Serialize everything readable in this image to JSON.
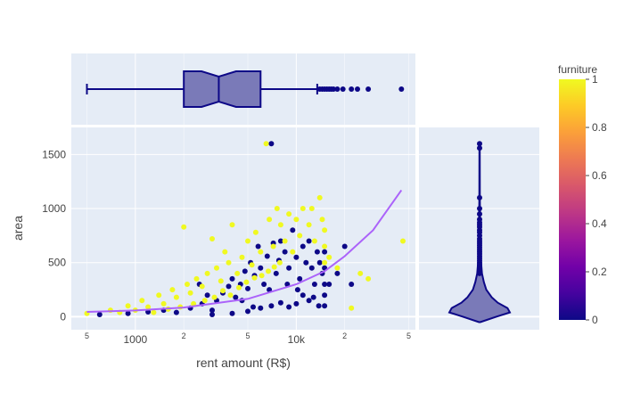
{
  "chart_data": {
    "type": "scatter",
    "xlabel": "rent amount (R$)",
    "ylabel": "area",
    "x_scale": "log",
    "xlim": [
      400,
      55000
    ],
    "ylim": [
      -120,
      1750
    ],
    "x_major_ticks": [
      {
        "value": 1000,
        "label": "1000"
      },
      {
        "value": 10000,
        "label": "10k"
      }
    ],
    "x_minor_ticks": [
      {
        "value": 500,
        "label": "5"
      },
      {
        "value": 2000,
        "label": "2"
      },
      {
        "value": 5000,
        "label": "5"
      },
      {
        "value": 20000,
        "label": "2"
      },
      {
        "value": 50000,
        "label": "5"
      }
    ],
    "y_ticks": [
      0,
      500,
      1000,
      1500
    ],
    "grid": true,
    "colorbar": {
      "title": "furniture",
      "range": [
        0,
        1
      ],
      "ticks": [
        0,
        0.2,
        0.4,
        0.6,
        0.8,
        1
      ],
      "tick_labels": [
        "0",
        "0.2",
        "0.4",
        "0.6",
        "0.8",
        "1"
      ],
      "colors": [
        "#0d0887",
        "#46039f",
        "#7201a8",
        "#9c179e",
        "#bd3786",
        "#d8576b",
        "#ed7953",
        "#fb9f3a",
        "#fdca26",
        "#f0f921"
      ]
    },
    "series": [
      {
        "color_value": 0,
        "color": "#0d0887",
        "points": [
          [
            600,
            20
          ],
          [
            900,
            30
          ],
          [
            1200,
            45
          ],
          [
            1500,
            60
          ],
          [
            1800,
            40
          ],
          [
            2200,
            80
          ],
          [
            2600,
            120
          ],
          [
            3000,
            60
          ],
          [
            3200,
            150
          ],
          [
            3500,
            220
          ],
          [
            3800,
            280
          ],
          [
            4000,
            350
          ],
          [
            4200,
            180
          ],
          [
            4500,
            300
          ],
          [
            4800,
            420
          ],
          [
            5000,
            260
          ],
          [
            5200,
            500
          ],
          [
            5500,
            380
          ],
          [
            5800,
            650
          ],
          [
            6000,
            450
          ],
          [
            6300,
            300
          ],
          [
            6600,
            560
          ],
          [
            7000,
            1600
          ],
          [
            7200,
            680
          ],
          [
            7500,
            400
          ],
          [
            7800,
            520
          ],
          [
            8000,
            700
          ],
          [
            8500,
            600
          ],
          [
            9000,
            450
          ],
          [
            9500,
            800
          ],
          [
            10000,
            550
          ],
          [
            10500,
            350
          ],
          [
            11000,
            650
          ],
          [
            11500,
            500
          ],
          [
            12000,
            700
          ],
          [
            12500,
            450
          ],
          [
            13000,
            300
          ],
          [
            13500,
            600
          ],
          [
            14000,
            500
          ],
          [
            14500,
            400
          ],
          [
            15000,
            600
          ],
          [
            15000,
            450
          ],
          [
            15000,
            300
          ],
          [
            15000,
            200
          ],
          [
            15000,
            100
          ],
          [
            16000,
            300
          ],
          [
            18000,
            400
          ],
          [
            20000,
            650
          ],
          [
            22000,
            300
          ],
          [
            3000,
            20
          ],
          [
            4000,
            30
          ],
          [
            5000,
            50
          ],
          [
            6000,
            80
          ],
          [
            7000,
            100
          ],
          [
            8000,
            130
          ],
          [
            9000,
            90
          ],
          [
            10000,
            120
          ],
          [
            11000,
            200
          ],
          [
            12000,
            150
          ],
          [
            2500,
            300
          ],
          [
            2800,
            200
          ],
          [
            4600,
            150
          ],
          [
            5400,
            90
          ],
          [
            6800,
            250
          ],
          [
            8800,
            300
          ],
          [
            10200,
            250
          ],
          [
            12800,
            180
          ],
          [
            13800,
            100
          ]
        ]
      },
      {
        "color_value": 1,
        "color": "#f0f921",
        "points": [
          [
            500,
            30
          ],
          [
            700,
            60
          ],
          [
            800,
            40
          ],
          [
            900,
            100
          ],
          [
            1000,
            60
          ],
          [
            1100,
            150
          ],
          [
            1200,
            90
          ],
          [
            1400,
            200
          ],
          [
            1500,
            120
          ],
          [
            1700,
            250
          ],
          [
            1800,
            180
          ],
          [
            2000,
            830
          ],
          [
            2100,
            300
          ],
          [
            2200,
            220
          ],
          [
            2400,
            350
          ],
          [
            2600,
            280
          ],
          [
            2800,
            400
          ],
          [
            3000,
            720
          ],
          [
            3200,
            450
          ],
          [
            3400,
            330
          ],
          [
            3600,
            600
          ],
          [
            3800,
            500
          ],
          [
            4000,
            850
          ],
          [
            4300,
            400
          ],
          [
            4600,
            550
          ],
          [
            5000,
            700
          ],
          [
            5300,
            480
          ],
          [
            5600,
            780
          ],
          [
            6000,
            600
          ],
          [
            6500,
            1600
          ],
          [
            6800,
            900
          ],
          [
            7200,
            650
          ],
          [
            7600,
            1000
          ],
          [
            8000,
            850
          ],
          [
            8500,
            700
          ],
          [
            9000,
            950
          ],
          [
            9500,
            600
          ],
          [
            10000,
            900
          ],
          [
            10500,
            750
          ],
          [
            11000,
            1000
          ],
          [
            12000,
            850
          ],
          [
            12500,
            1000
          ],
          [
            13000,
            700
          ],
          [
            14000,
            1100
          ],
          [
            14500,
            900
          ],
          [
            15000,
            800
          ],
          [
            15000,
            650
          ],
          [
            15000,
            500
          ],
          [
            16000,
            550
          ],
          [
            18000,
            450
          ],
          [
            22000,
            80
          ],
          [
            25000,
            400
          ],
          [
            28000,
            350
          ],
          [
            46000,
            700
          ],
          [
            1300,
            40
          ],
          [
            1600,
            70
          ],
          [
            1900,
            90
          ],
          [
            2300,
            120
          ],
          [
            2700,
            150
          ],
          [
            3100,
            180
          ],
          [
            3500,
            240
          ],
          [
            3900,
            200
          ],
          [
            4400,
            270
          ],
          [
            4900,
            320
          ],
          [
            5500,
            360
          ],
          [
            6100,
            380
          ],
          [
            6700,
            420
          ],
          [
            7300,
            460
          ],
          [
            7900,
            500
          ]
        ]
      }
    ],
    "trendline": {
      "color": "#ab63fa",
      "points": [
        [
          500,
          45
        ],
        [
          1000,
          58
        ],
        [
          2000,
          85
        ],
        [
          5000,
          165
        ],
        [
          10000,
          300
        ],
        [
          15000,
          420
        ],
        [
          20000,
          560
        ],
        [
          30000,
          800
        ],
        [
          45000,
          1170
        ]
      ]
    },
    "marginal_x": {
      "type": "box",
      "notched": true,
      "color": "#0d0887",
      "fill": "#7a7ab8",
      "min": 500,
      "q1": 2000,
      "median": 3300,
      "q3": 6000,
      "max": 13500,
      "outliers": [
        14000,
        14500,
        15000,
        15500,
        16000,
        16500,
        17000,
        18000,
        19500,
        22000,
        24000,
        28000,
        45000
      ]
    },
    "marginal_y": {
      "type": "violin",
      "color": "#0d0887",
      "fill": "#7a7ab8",
      "profile": [
        [
          -50,
          0.02
        ],
        [
          0,
          0.55
        ],
        [
          40,
          1.0
        ],
        [
          80,
          0.92
        ],
        [
          130,
          0.6
        ],
        [
          180,
          0.4
        ],
        [
          250,
          0.22
        ],
        [
          320,
          0.14
        ],
        [
          400,
          0.08
        ],
        [
          500,
          0.05
        ],
        [
          600,
          0.03
        ],
        [
          800,
          0.02
        ],
        [
          1100,
          0.01
        ],
        [
          1600,
          0.005
        ]
      ],
      "points": [
        1600,
        1560,
        1100,
        1000,
        950,
        900,
        870,
        850,
        830,
        800,
        780,
        750,
        720,
        700,
        680,
        660,
        640,
        620,
        600,
        580,
        560,
        540,
        520,
        500,
        480,
        460,
        440,
        420,
        400
      ]
    }
  }
}
